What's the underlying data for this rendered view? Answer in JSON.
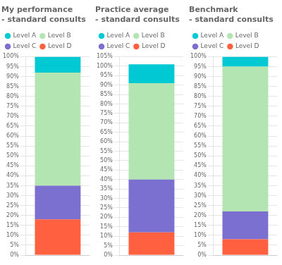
{
  "chart_data": [
    {
      "type": "bar",
      "title": "My performance\n- standard consults",
      "categories": [
        null
      ],
      "series": [
        {
          "name": "Level A",
          "color": "#00C9D4",
          "values": [
            8
          ]
        },
        {
          "name": "Level B",
          "color": "#B2E5B2",
          "values": [
            57
          ]
        },
        {
          "name": "Level C",
          "color": "#7B6FD0",
          "values": [
            17
          ]
        },
        {
          "name": "Level D",
          "color": "#FF6040",
          "values": [
            18
          ]
        }
      ],
      "stacked": true,
      "ylim": [
        0,
        100
      ],
      "yticks": [
        {
          "value": 0,
          "label": "0%"
        },
        {
          "value": 5,
          "label": "5%"
        },
        {
          "value": 10,
          "label": "10%"
        },
        {
          "value": 15,
          "label": "15%"
        },
        {
          "value": 20,
          "label": "20%"
        },
        {
          "value": 25,
          "label": "25%"
        },
        {
          "value": 30,
          "label": "30%"
        },
        {
          "value": 35,
          "label": "35%"
        },
        {
          "value": 40,
          "label": "40%"
        },
        {
          "value": 45,
          "label": "45%"
        },
        {
          "value": 50,
          "label": "50%"
        },
        {
          "value": 55,
          "label": "55%"
        },
        {
          "value": 60,
          "label": "60%"
        },
        {
          "value": 65,
          "label": "65%"
        },
        {
          "value": 70,
          "label": "70%"
        },
        {
          "value": 75,
          "label": "75%"
        },
        {
          "value": 80,
          "label": "80%"
        },
        {
          "value": 85,
          "label": "85%"
        },
        {
          "value": 90,
          "label": "90%"
        },
        {
          "value": 95,
          "label": "95%"
        },
        {
          "value": 100,
          "label": "100%"
        }
      ],
      "grid": true,
      "legend": "top",
      "tick_labels": "y"
    },
    {
      "type": "bar",
      "title": "Practice average\n- standard consults",
      "categories": [
        null
      ],
      "series": [
        {
          "name": "Level A",
          "color": "#00C9D4",
          "values": [
            10
          ]
        },
        {
          "name": "Level B",
          "color": "#B2E5B2",
          "values": [
            51
          ]
        },
        {
          "name": "Level C",
          "color": "#7B6FD0",
          "values": [
            28
          ]
        },
        {
          "name": "Level D",
          "color": "#FF6040",
          "values": [
            12
          ]
        }
      ],
      "stacked": true,
      "ylim": [
        0,
        105
      ],
      "yticks": [
        {
          "value": 0,
          "label": "0%"
        },
        {
          "value": 5,
          "label": "5%"
        },
        {
          "value": 10,
          "label": "10%"
        },
        {
          "value": 15,
          "label": "15%"
        },
        {
          "value": 20,
          "label": "20%"
        },
        {
          "value": 25,
          "label": "25%"
        },
        {
          "value": 30,
          "label": "30%"
        },
        {
          "value": 35,
          "label": "35%"
        },
        {
          "value": 40,
          "label": "40%"
        },
        {
          "value": 45,
          "label": "45%"
        },
        {
          "value": 50,
          "label": "50%"
        },
        {
          "value": 55,
          "label": "55%"
        },
        {
          "value": 60,
          "label": "60%"
        },
        {
          "value": 65,
          "label": "65%"
        },
        {
          "value": 70,
          "label": "70%"
        },
        {
          "value": 75,
          "label": "75%"
        },
        {
          "value": 80,
          "label": "80%"
        },
        {
          "value": 85,
          "label": "85%"
        },
        {
          "value": 90,
          "label": "90%"
        },
        {
          "value": 95,
          "label": "95%"
        },
        {
          "value": 100,
          "label": "100%"
        },
        {
          "value": 105,
          "label": "105%"
        }
      ],
      "grid": true,
      "legend": "top",
      "tick_labels": "y"
    },
    {
      "type": "bar",
      "title": "Benchmark\n- standard consults",
      "categories": [
        null
      ],
      "series": [
        {
          "name": "Level A",
          "color": "#00C9D4",
          "values": [
            5
          ]
        },
        {
          "name": "Level B",
          "color": "#B2E5B2",
          "values": [
            73
          ]
        },
        {
          "name": "Level C",
          "color": "#7B6FD0",
          "values": [
            14
          ]
        },
        {
          "name": "Level D",
          "color": "#FF6040",
          "values": [
            8
          ]
        }
      ],
      "stacked": true,
      "ylim": [
        0,
        100
      ],
      "yticks": [
        {
          "value": 0,
          "label": "0%"
        },
        {
          "value": 5,
          "label": "5%"
        },
        {
          "value": 10,
          "label": "10%"
        },
        {
          "value": 15,
          "label": "15%"
        },
        {
          "value": 20,
          "label": "20%"
        },
        {
          "value": 25,
          "label": "25%"
        },
        {
          "value": 30,
          "label": "30%"
        },
        {
          "value": 35,
          "label": "35%"
        },
        {
          "value": 40,
          "label": "40%"
        },
        {
          "value": 45,
          "label": "45%"
        },
        {
          "value": 50,
          "label": "50%"
        },
        {
          "value": 55,
          "label": "55%"
        },
        {
          "value": 60,
          "label": "60%"
        },
        {
          "value": 65,
          "label": "65%"
        },
        {
          "value": 70,
          "label": "70%"
        },
        {
          "value": 75,
          "label": "75%"
        },
        {
          "value": 80,
          "label": "80%"
        },
        {
          "value": 85,
          "label": "85%"
        },
        {
          "value": 90,
          "label": "90%"
        },
        {
          "value": 95,
          "label": "95%"
        },
        {
          "value": 100,
          "label": "100%"
        }
      ],
      "grid": true,
      "legend": "top",
      "tick_labels": "y"
    }
  ]
}
